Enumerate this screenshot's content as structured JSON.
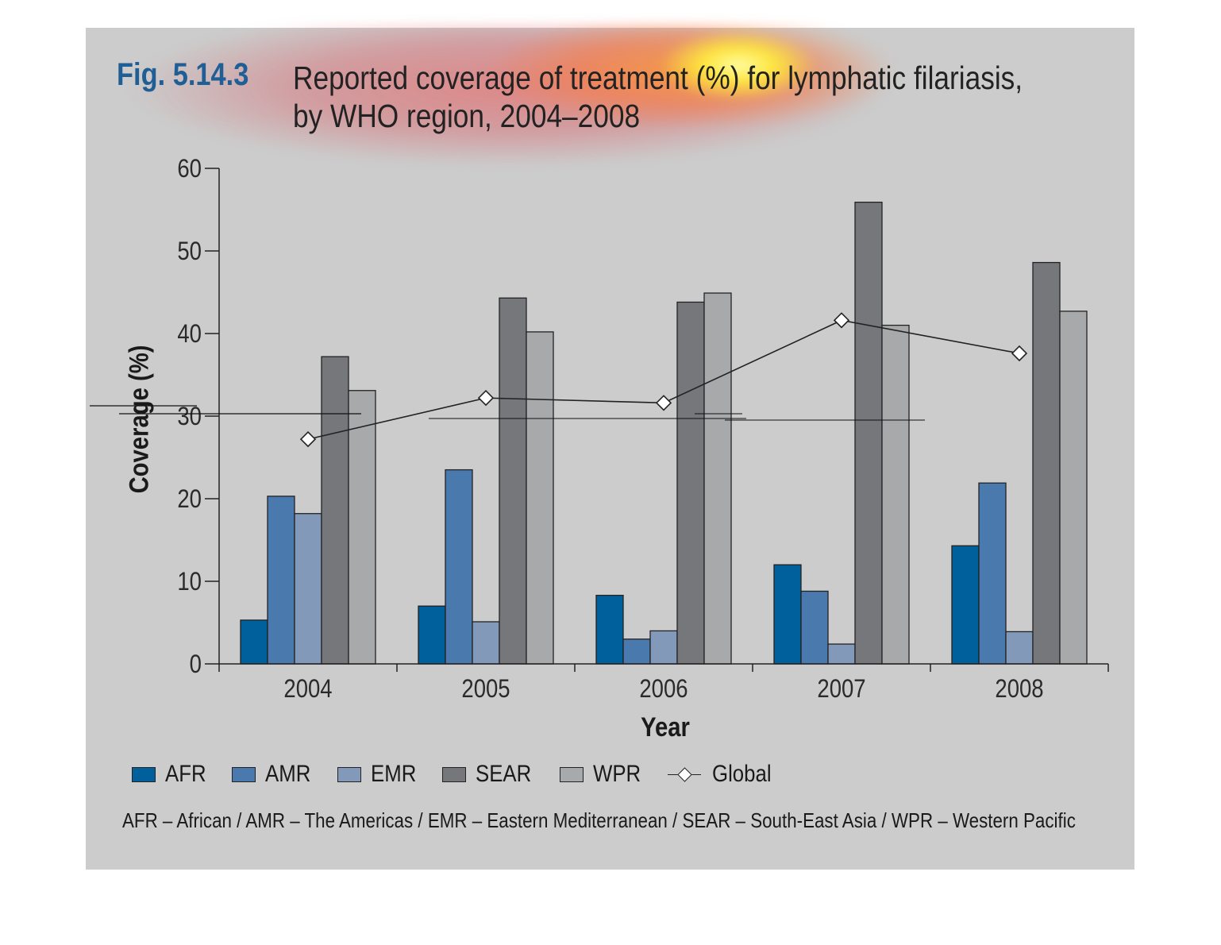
{
  "figure": {
    "number": "Fig. 5.14.3",
    "title_line1": "Reported coverage of treatment (%) for lymphatic filariasis,",
    "title_line2": "by WHO region, 2004–2008"
  },
  "footnote": "AFR – African / AMR – The Americas / EMR – Eastern Mediterranean / SEAR – South-East Asia / WPR – Western Pacific",
  "colors": {
    "panel_background": "#cccccc",
    "figure_number": "#1f5f96",
    "AFR": "#00609c",
    "AMR": "#4a7aad",
    "EMR": "#8299ba",
    "SEAR": "#76777b",
    "WPR": "#a8a9ab",
    "Global": "#222222"
  },
  "legend": [
    {
      "label": "AFR",
      "type": "bar",
      "color": "#00609c"
    },
    {
      "label": "AMR",
      "type": "bar",
      "color": "#4a7aad"
    },
    {
      "label": "EMR",
      "type": "bar",
      "color": "#8299ba"
    },
    {
      "label": "SEAR",
      "type": "bar",
      "color": "#76777b"
    },
    {
      "label": "WPR",
      "type": "bar",
      "color": "#a8a9ab"
    },
    {
      "label": "Global",
      "type": "line-diamond",
      "color": "#222222"
    }
  ],
  "chart_data": {
    "type": "bar",
    "title": "Reported coverage of treatment (%) for lymphatic filariasis, by WHO region, 2004–2008",
    "xlabel": "Year",
    "ylabel": "Coverage (%)",
    "categories": [
      "2004",
      "2005",
      "2006",
      "2007",
      "2008"
    ],
    "ylim": [
      0,
      60
    ],
    "yticks": [
      0,
      10,
      20,
      30,
      40,
      50,
      60
    ],
    "grid": false,
    "legend_position": "bottom",
    "series": [
      {
        "name": "AFR",
        "values": [
          5.3,
          7.0,
          8.3,
          12.0,
          14.3
        ]
      },
      {
        "name": "AMR",
        "values": [
          20.3,
          23.5,
          3.0,
          8.8,
          21.9
        ]
      },
      {
        "name": "EMR",
        "values": [
          18.2,
          5.1,
          4.0,
          2.4,
          3.9
        ]
      },
      {
        "name": "SEAR",
        "values": [
          37.2,
          44.3,
          43.8,
          55.9,
          48.6
        ]
      },
      {
        "name": "WPR",
        "values": [
          33.1,
          40.2,
          44.9,
          41.0,
          42.7
        ]
      }
    ],
    "line_series": [
      {
        "name": "Global",
        "marker": "diamond",
        "values": [
          27.2,
          32.2,
          31.6,
          41.6,
          37.6
        ]
      }
    ]
  }
}
